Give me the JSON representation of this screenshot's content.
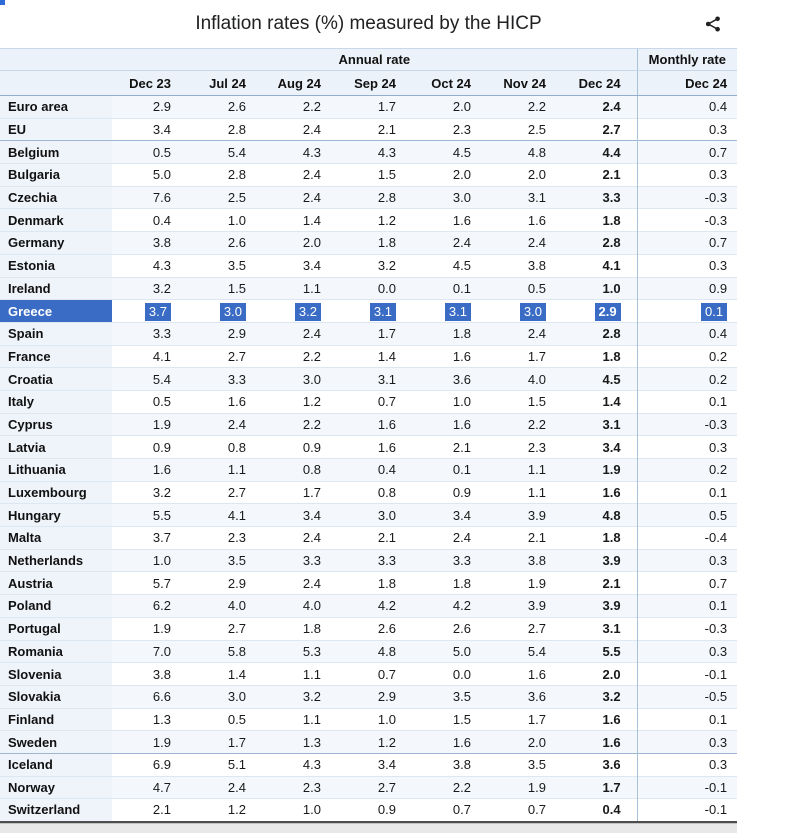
{
  "header": {
    "title": "Inflation rates (%) measured by the HICP"
  },
  "table": {
    "group_annual": "Annual rate",
    "group_monthly": "Monthly rate",
    "annual_columns": [
      "Dec 23",
      "Jul 24",
      "Aug 24",
      "Sep 24",
      "Oct 24",
      "Nov 24",
      "Dec 24"
    ],
    "monthly_column": "Dec 24",
    "rows": [
      {
        "country": "Euro area",
        "values": [
          "2.9",
          "2.6",
          "2.2",
          "1.7",
          "2.0",
          "2.2",
          "2.4"
        ],
        "monthly": "0.4",
        "highlight": false,
        "group_end": false
      },
      {
        "country": "EU",
        "values": [
          "3.4",
          "2.8",
          "2.4",
          "2.1",
          "2.3",
          "2.5",
          "2.7"
        ],
        "monthly": "0.3",
        "highlight": false,
        "group_end": true
      },
      {
        "country": "Belgium",
        "values": [
          "0.5",
          "5.4",
          "4.3",
          "4.3",
          "4.5",
          "4.8",
          "4.4"
        ],
        "monthly": "0.7",
        "highlight": false,
        "group_end": false
      },
      {
        "country": "Bulgaria",
        "values": [
          "5.0",
          "2.8",
          "2.4",
          "1.5",
          "2.0",
          "2.0",
          "2.1"
        ],
        "monthly": "0.3",
        "highlight": false,
        "group_end": false
      },
      {
        "country": "Czechia",
        "values": [
          "7.6",
          "2.5",
          "2.4",
          "2.8",
          "3.0",
          "3.1",
          "3.3"
        ],
        "monthly": "-0.3",
        "highlight": false,
        "group_end": false
      },
      {
        "country": "Denmark",
        "values": [
          "0.4",
          "1.0",
          "1.4",
          "1.2",
          "1.6",
          "1.6",
          "1.8"
        ],
        "monthly": "-0.3",
        "highlight": false,
        "group_end": false
      },
      {
        "country": "Germany",
        "values": [
          "3.8",
          "2.6",
          "2.0",
          "1.8",
          "2.4",
          "2.4",
          "2.8"
        ],
        "monthly": "0.7",
        "highlight": false,
        "group_end": false
      },
      {
        "country": "Estonia",
        "values": [
          "4.3",
          "3.5",
          "3.4",
          "3.2",
          "4.5",
          "3.8",
          "4.1"
        ],
        "monthly": "0.3",
        "highlight": false,
        "group_end": false
      },
      {
        "country": "Ireland",
        "values": [
          "3.2",
          "1.5",
          "1.1",
          "0.0",
          "0.1",
          "0.5",
          "1.0"
        ],
        "monthly": "0.9",
        "highlight": false,
        "group_end": false
      },
      {
        "country": "Greece",
        "values": [
          "3.7",
          "3.0",
          "3.2",
          "3.1",
          "3.1",
          "3.0",
          "2.9"
        ],
        "monthly": "0.1",
        "highlight": true,
        "group_end": false
      },
      {
        "country": "Spain",
        "values": [
          "3.3",
          "2.9",
          "2.4",
          "1.7",
          "1.8",
          "2.4",
          "2.8"
        ],
        "monthly": "0.4",
        "highlight": false,
        "group_end": false
      },
      {
        "country": "France",
        "values": [
          "4.1",
          "2.7",
          "2.2",
          "1.4",
          "1.6",
          "1.7",
          "1.8"
        ],
        "monthly": "0.2",
        "highlight": false,
        "group_end": false
      },
      {
        "country": "Croatia",
        "values": [
          "5.4",
          "3.3",
          "3.0",
          "3.1",
          "3.6",
          "4.0",
          "4.5"
        ],
        "monthly": "0.2",
        "highlight": false,
        "group_end": false
      },
      {
        "country": "Italy",
        "values": [
          "0.5",
          "1.6",
          "1.2",
          "0.7",
          "1.0",
          "1.5",
          "1.4"
        ],
        "monthly": "0.1",
        "highlight": false,
        "group_end": false
      },
      {
        "country": "Cyprus",
        "values": [
          "1.9",
          "2.4",
          "2.2",
          "1.6",
          "1.6",
          "2.2",
          "3.1"
        ],
        "monthly": "-0.3",
        "highlight": false,
        "group_end": false
      },
      {
        "country": "Latvia",
        "values": [
          "0.9",
          "0.8",
          "0.9",
          "1.6",
          "2.1",
          "2.3",
          "3.4"
        ],
        "monthly": "0.3",
        "highlight": false,
        "group_end": false
      },
      {
        "country": "Lithuania",
        "values": [
          "1.6",
          "1.1",
          "0.8",
          "0.4",
          "0.1",
          "1.1",
          "1.9"
        ],
        "monthly": "0.2",
        "highlight": false,
        "group_end": false
      },
      {
        "country": "Luxembourg",
        "values": [
          "3.2",
          "2.7",
          "1.7",
          "0.8",
          "0.9",
          "1.1",
          "1.6"
        ],
        "monthly": "0.1",
        "highlight": false,
        "group_end": false
      },
      {
        "country": "Hungary",
        "values": [
          "5.5",
          "4.1",
          "3.4",
          "3.0",
          "3.4",
          "3.9",
          "4.8"
        ],
        "monthly": "0.5",
        "highlight": false,
        "group_end": false
      },
      {
        "country": "Malta",
        "values": [
          "3.7",
          "2.3",
          "2.4",
          "2.1",
          "2.4",
          "2.1",
          "1.8"
        ],
        "monthly": "-0.4",
        "highlight": false,
        "group_end": false
      },
      {
        "country": "Netherlands",
        "values": [
          "1.0",
          "3.5",
          "3.3",
          "3.3",
          "3.3",
          "3.8",
          "3.9"
        ],
        "monthly": "0.3",
        "highlight": false,
        "group_end": false
      },
      {
        "country": "Austria",
        "values": [
          "5.7",
          "2.9",
          "2.4",
          "1.8",
          "1.8",
          "1.9",
          "2.1"
        ],
        "monthly": "0.7",
        "highlight": false,
        "group_end": false
      },
      {
        "country": "Poland",
        "values": [
          "6.2",
          "4.0",
          "4.0",
          "4.2",
          "4.2",
          "3.9",
          "3.9"
        ],
        "monthly": "0.1",
        "highlight": false,
        "group_end": false
      },
      {
        "country": "Portugal",
        "values": [
          "1.9",
          "2.7",
          "1.8",
          "2.6",
          "2.6",
          "2.7",
          "3.1"
        ],
        "monthly": "-0.3",
        "highlight": false,
        "group_end": false
      },
      {
        "country": "Romania",
        "values": [
          "7.0",
          "5.8",
          "5.3",
          "4.8",
          "5.0",
          "5.4",
          "5.5"
        ],
        "monthly": "0.3",
        "highlight": false,
        "group_end": false
      },
      {
        "country": "Slovenia",
        "values": [
          "3.8",
          "1.4",
          "1.1",
          "0.7",
          "0.0",
          "1.6",
          "2.0"
        ],
        "monthly": "-0.1",
        "highlight": false,
        "group_end": false
      },
      {
        "country": "Slovakia",
        "values": [
          "6.6",
          "3.0",
          "3.2",
          "2.9",
          "3.5",
          "3.6",
          "3.2"
        ],
        "monthly": "-0.5",
        "highlight": false,
        "group_end": false
      },
      {
        "country": "Finland",
        "values": [
          "1.3",
          "0.5",
          "1.1",
          "1.0",
          "1.5",
          "1.7",
          "1.6"
        ],
        "monthly": "0.1",
        "highlight": false,
        "group_end": false
      },
      {
        "country": "Sweden",
        "values": [
          "1.9",
          "1.7",
          "1.3",
          "1.2",
          "1.6",
          "2.0",
          "1.6"
        ],
        "monthly": "0.3",
        "highlight": false,
        "group_end": true
      },
      {
        "country": "Iceland",
        "values": [
          "6.9",
          "5.1",
          "4.3",
          "3.4",
          "3.8",
          "3.5",
          "3.6"
        ],
        "monthly": "0.3",
        "highlight": false,
        "group_end": false
      },
      {
        "country": "Norway",
        "values": [
          "4.7",
          "2.4",
          "2.3",
          "2.7",
          "2.2",
          "1.9",
          "1.7"
        ],
        "monthly": "-0.1",
        "highlight": false,
        "group_end": false
      },
      {
        "country": "Switzerland",
        "values": [
          "2.1",
          "1.2",
          "1.0",
          "0.9",
          "0.7",
          "0.7",
          "0.4"
        ],
        "monthly": "-0.1",
        "highlight": false,
        "group_end": false
      }
    ]
  },
  "colors": {
    "highlight": "#3b6cc5",
    "header_bg": "#ecf2f9",
    "stripe": "#f4f8fc"
  }
}
